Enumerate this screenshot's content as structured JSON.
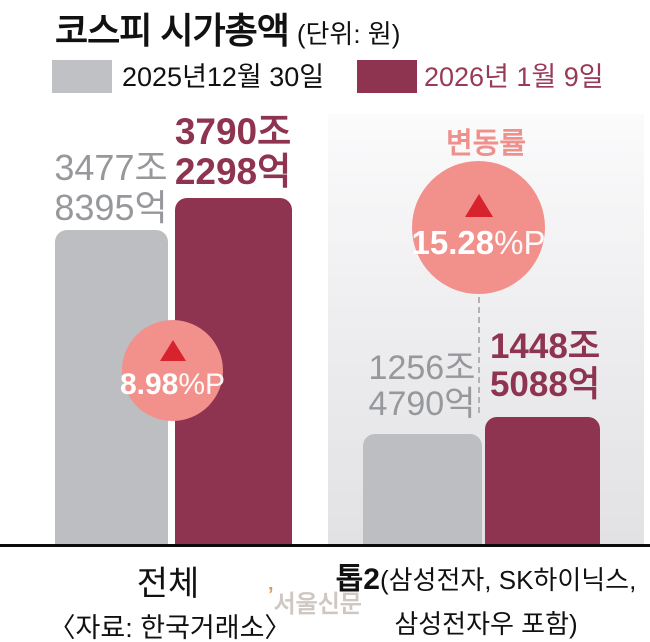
{
  "title": {
    "text": "코스피 시가총액",
    "unit": "(단위: 원)"
  },
  "legend": {
    "items": [
      {
        "label": "2025년12월 30일",
        "color": "#bcbec2"
      },
      {
        "label": "2026년 1월 9일",
        "color": "#8e3350"
      }
    ]
  },
  "left_group": {
    "prev": {
      "line1": "3477조",
      "line2": "8395억"
    },
    "curr": {
      "line1": "3790조",
      "line2": "2298억"
    },
    "change": {
      "value": "8.98",
      "suffix": "%P"
    }
  },
  "right_group": {
    "change_title": "변동률",
    "prev": {
      "line1": "1256조",
      "line2": "4790억"
    },
    "curr": {
      "line1": "1448조",
      "line2": "5088억"
    },
    "change": {
      "value": "15.28",
      "suffix": "%P"
    }
  },
  "footer": {
    "left_label": "전체",
    "source": "〈자료: 한국거래소〉",
    "right_label_bold": "톱2",
    "right_label_rest": "(삼성전자, SK하이닉스,",
    "right_label_line2": "삼성전자우 포함)",
    "watermark_tick": "’",
    "watermark": "서울신문"
  },
  "colors": {
    "bar_prev": "#bcbec2",
    "bar_curr": "#8e3350",
    "badge_pink": "#f2908c",
    "triangle_red": "#d6232e",
    "muted_text": "#96989b",
    "accent_text": "#993a56",
    "panel_top": "#fbfbfc",
    "panel_bottom": "#e2e2e4"
  },
  "chart_data": {
    "type": "bar",
    "title": "코스피 시가총액",
    "unit_note": "(단위: 원)",
    "categories": [
      "전체",
      "톱2(삼성전자, SK하이닉스, 삼성전자우 포함)"
    ],
    "series": [
      {
        "name": "2025년12월 30일",
        "color": "#bcbec2",
        "values_label": [
          "3477조 8395억",
          "1256조 4790억"
        ],
        "values_trillion_won": [
          3477.8395,
          1256.479
        ]
      },
      {
        "name": "2026년 1월 9일",
        "color": "#8e3350",
        "values_label": [
          "3790조 2298억",
          "1448조 5088억"
        ],
        "values_trillion_won": [
          3790.2298,
          1448.5088
        ]
      }
    ],
    "changes": [
      {
        "category": "전체",
        "direction": "up",
        "label": "8.98%P"
      },
      {
        "category": "톱2",
        "direction": "up",
        "label": "15.28%P",
        "badge_title": "변동률"
      }
    ],
    "legend_position": "top",
    "grid": false,
    "source": "〈자료: 한국거래소〉"
  }
}
